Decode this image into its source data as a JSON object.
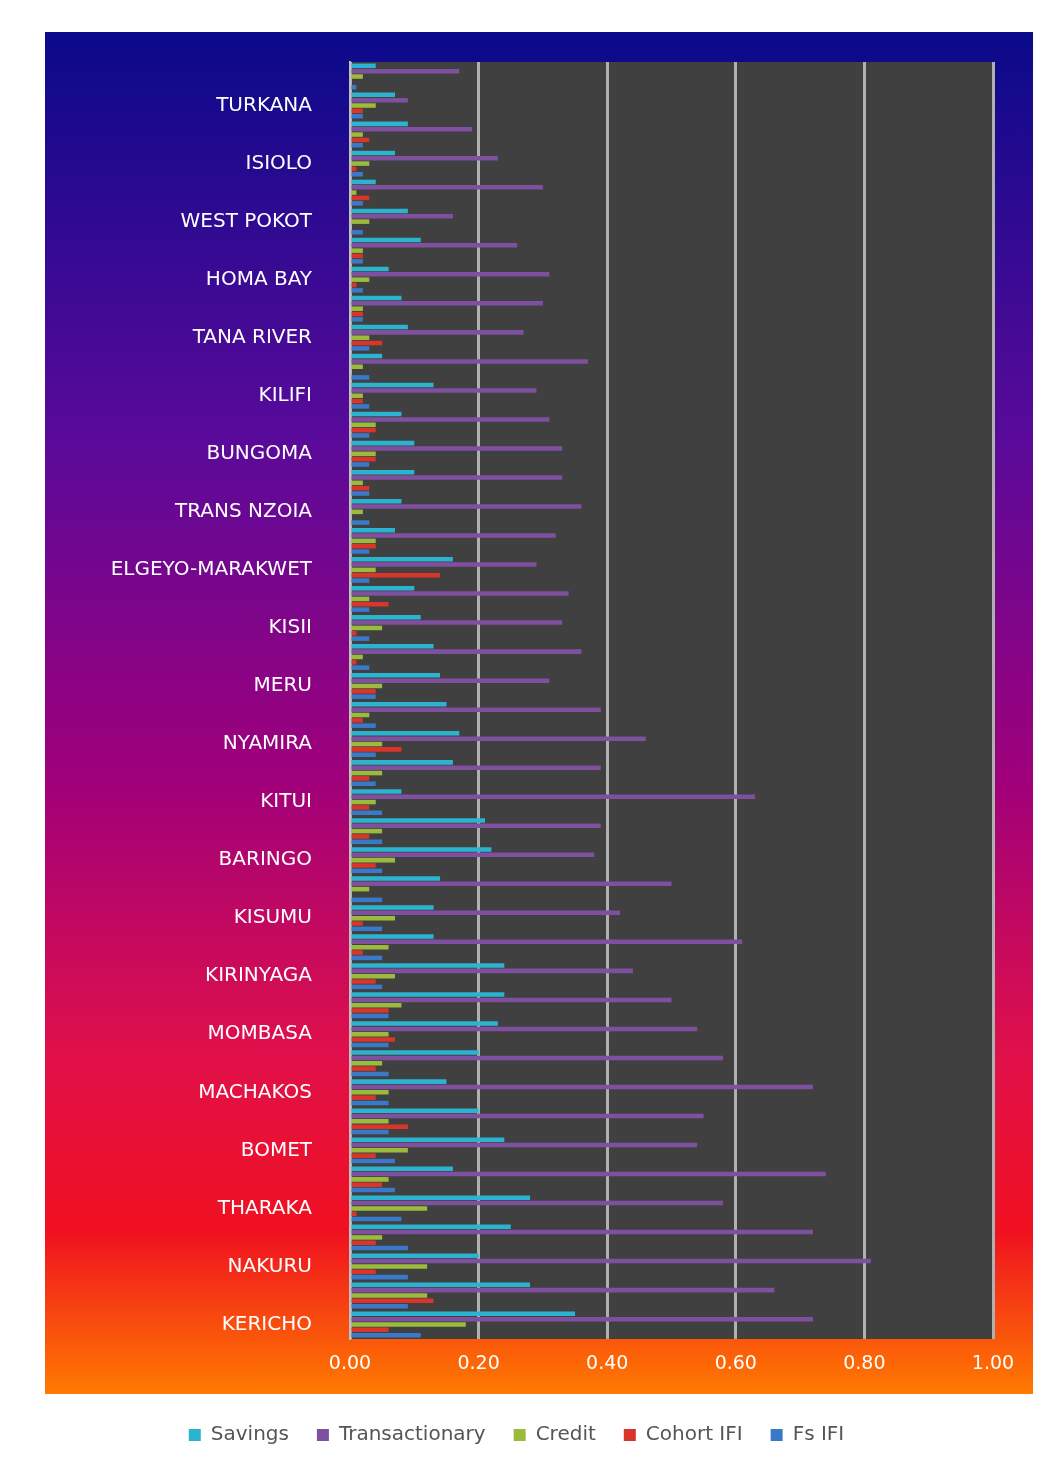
{
  "chart_data": {
    "type": "bar",
    "orientation": "horizontal",
    "categories": [
      null,
      "TURKANA",
      null,
      "ISIOLO",
      null,
      "WEST POKOT",
      null,
      "HOMA BAY",
      null,
      "TANA RIVER",
      null,
      "KILIFI",
      null,
      "BUNGOMA",
      null,
      "TRANS NZOIA",
      null,
      "ELGEYO-MARAKWET",
      null,
      "KISII",
      null,
      "MERU",
      null,
      "NYAMIRA",
      null,
      "KITUI",
      null,
      "BARINGO",
      null,
      "KISUMU",
      null,
      "KIRINYAGA",
      null,
      "MOMBASA",
      null,
      "MACHAKOS",
      null,
      "BOMET",
      null,
      "THARAKA",
      null,
      "NAKURU",
      null,
      "KERICHO"
    ],
    "series": [
      {
        "name": "Savings",
        "color": "#2bb3d0",
        "values": [
          0.04,
          0.07,
          0.09,
          0.07,
          0.04,
          0.09,
          0.11,
          0.06,
          0.08,
          0.09,
          0.05,
          0.13,
          0.08,
          0.1,
          0.1,
          0.08,
          0.07,
          0.16,
          0.1,
          0.11,
          0.13,
          0.14,
          0.15,
          0.17,
          0.16,
          0.08,
          0.21,
          0.22,
          0.14,
          0.13,
          0.13,
          0.24,
          0.24,
          0.23,
          0.2,
          0.15,
          0.2,
          0.24,
          0.16,
          0.28,
          0.25,
          0.2,
          0.28,
          0.35
        ]
      },
      {
        "name": "Transactionary",
        "color": "#7f4fa0",
        "values": [
          0.17,
          0.09,
          0.19,
          0.23,
          0.3,
          0.16,
          0.26,
          0.31,
          0.3,
          0.27,
          0.37,
          0.29,
          0.31,
          0.33,
          0.33,
          0.36,
          0.32,
          0.29,
          0.34,
          0.33,
          0.36,
          0.31,
          0.39,
          0.46,
          0.39,
          0.63,
          0.39,
          0.38,
          0.5,
          0.42,
          0.61,
          0.44,
          0.5,
          0.54,
          0.58,
          0.72,
          0.55,
          0.54,
          0.74,
          0.58,
          0.72,
          0.81,
          0.66,
          0.72
        ]
      },
      {
        "name": "Credit",
        "color": "#9bbb3c",
        "values": [
          0.02,
          0.04,
          0.02,
          0.03,
          0.01,
          0.03,
          0.02,
          0.03,
          0.02,
          0.03,
          0.02,
          0.02,
          0.04,
          0.04,
          0.02,
          0.02,
          0.04,
          0.04,
          0.03,
          0.05,
          0.02,
          0.05,
          0.03,
          0.05,
          0.05,
          0.04,
          0.05,
          0.07,
          0.03,
          0.07,
          0.06,
          0.07,
          0.08,
          0.06,
          0.05,
          0.06,
          0.06,
          0.09,
          0.06,
          0.12,
          0.05,
          0.12,
          0.12,
          0.18
        ]
      },
      {
        "name": "Cohort IFI",
        "color": "#d9352b",
        "values": [
          0,
          0.02,
          0.03,
          0.01,
          0.03,
          0,
          0.02,
          0.01,
          0.02,
          0.05,
          0,
          0.02,
          0.04,
          0.04,
          0.03,
          0,
          0.04,
          0.14,
          0.06,
          0.01,
          0.01,
          0.04,
          0.02,
          0.08,
          0.03,
          0.03,
          0.03,
          0.04,
          0,
          0.02,
          0.02,
          0.04,
          0.06,
          0.07,
          0.04,
          0.04,
          0.09,
          0.04,
          0.05,
          0.01,
          0.04,
          0.04,
          0.13,
          0.06
        ]
      },
      {
        "name": "Fs IFI",
        "color": "#3a78c8",
        "values": [
          0.01,
          0.02,
          0.02,
          0.02,
          0.02,
          0.02,
          0.02,
          0.02,
          0.02,
          0.03,
          0.03,
          0.03,
          0.03,
          0.03,
          0.03,
          0.03,
          0.03,
          0.03,
          0.03,
          0.03,
          0.03,
          0.04,
          0.04,
          0.04,
          0.04,
          0.05,
          0.05,
          0.05,
          0.05,
          0.05,
          0.05,
          0.05,
          0.06,
          0.06,
          0.06,
          0.06,
          0.06,
          0.07,
          0.07,
          0.08,
          0.09,
          0.09,
          0.09,
          0.11
        ]
      }
    ],
    "xlim": [
      0,
      1
    ],
    "xticks": [
      {
        "value": 0,
        "label": "0.00"
      },
      {
        "value": 0.2,
        "label": "0.20"
      },
      {
        "value": 0.4,
        "label": "0.40"
      },
      {
        "value": 0.6,
        "label": "0.60"
      },
      {
        "value": 0.8,
        "label": "0.80"
      },
      {
        "value": 1,
        "label": "1.00"
      }
    ],
    "grid": "x",
    "legend": "bottom"
  }
}
